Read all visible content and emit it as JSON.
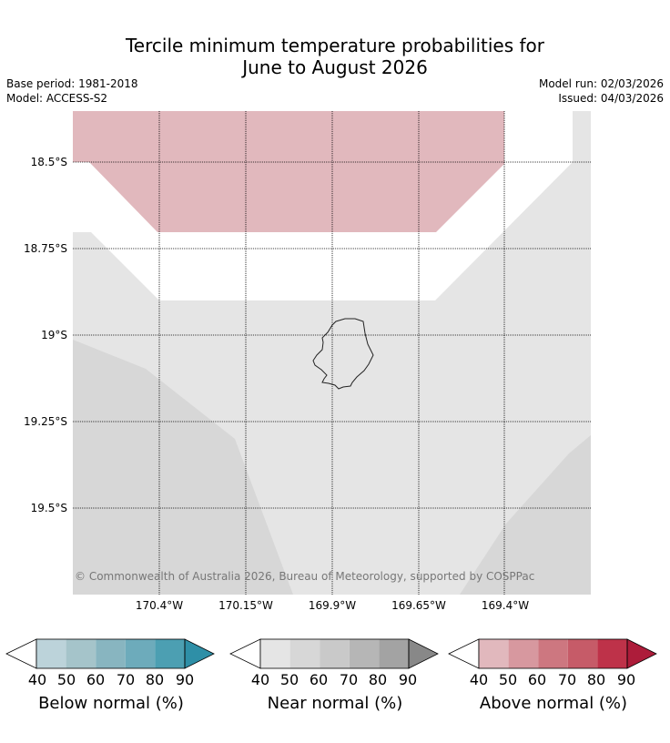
{
  "title": {
    "line1": "Tercile minimum temperature probabilities for",
    "line2": "June to August 2026"
  },
  "meta": {
    "base_period": "Base period: 1981-2018",
    "model": "Model: ACCESS-S2",
    "model_run": "Model run: 02/03/2026",
    "issued": "Issued: 04/03/2026"
  },
  "map": {
    "lat_labels": [
      "18.5°S",
      "18.75°S",
      "19°S",
      "19.25°S",
      "19.5°S"
    ],
    "lon_labels": [
      "170.4°W",
      "170.15°W",
      "169.9°W",
      "169.65°W",
      "169.4°W"
    ],
    "copyright": "© Commonwealth of Australia 2026, Bureau of Meteorology, supported by COSPPac",
    "colors": {
      "above_40": "#e1b8bd",
      "near_40": "#e5e5e5",
      "near_50": "#d7d7d7",
      "white": "#ffffff",
      "coast": "#222222"
    }
  },
  "colorbars": [
    {
      "name": "below",
      "label": "Below normal (%)",
      "ticks": [
        "40",
        "50",
        "60",
        "70",
        "80",
        "90"
      ],
      "colors": [
        "#bcd3da",
        "#a5c4ca",
        "#88b5c0",
        "#6dabbb",
        "#4c9fb2",
        "#2e8fa7"
      ]
    },
    {
      "name": "near",
      "label": "Near normal (%)",
      "ticks": [
        "40",
        "50",
        "60",
        "70",
        "80",
        "90"
      ],
      "colors": [
        "#e5e5e5",
        "#d7d7d7",
        "#c9c9c9",
        "#b6b6b6",
        "#a3a3a3",
        "#888888"
      ]
    },
    {
      "name": "above",
      "label": "Above normal (%)",
      "ticks": [
        "40",
        "50",
        "60",
        "70",
        "80",
        "90"
      ],
      "colors": [
        "#e1b8bd",
        "#d7989f",
        "#cd7780",
        "#c65b68",
        "#be3249",
        "#ad1c3a"
      ]
    }
  ]
}
